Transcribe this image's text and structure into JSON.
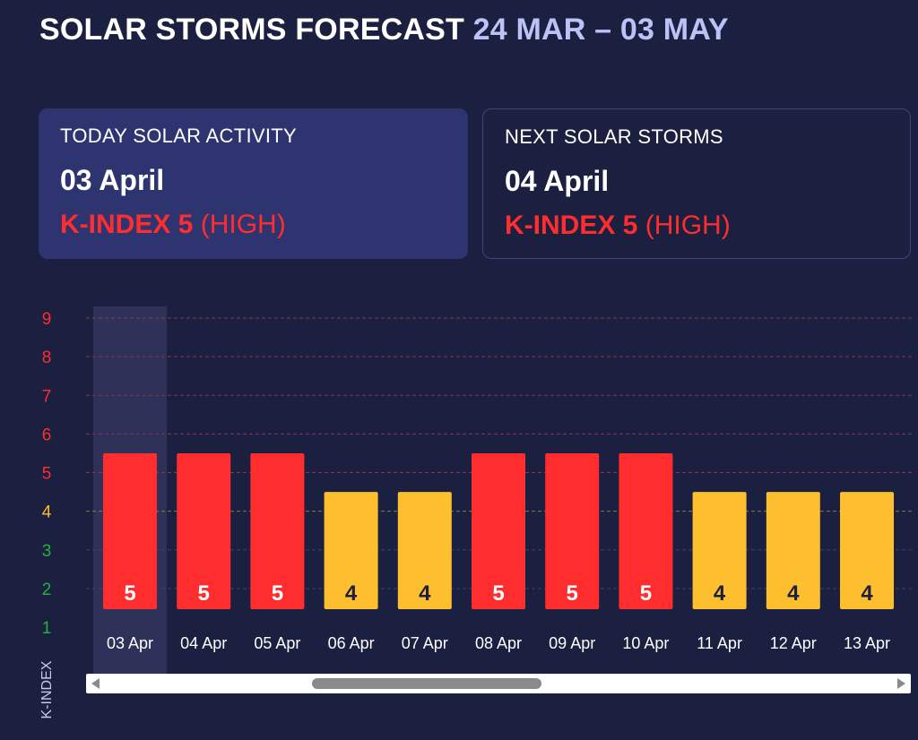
{
  "header": {
    "title": "SOLAR STORMS FORECAST",
    "range": "24 MAR – 03 MAY"
  },
  "today_card": {
    "label": "TODAY SOLAR ACTIVITY",
    "date": "03 April",
    "kindex": "K-INDEX 5",
    "level": "(HIGH)"
  },
  "next_card": {
    "label": "NEXT SOLAR STORMS",
    "date": "04 April",
    "kindex": "K-INDEX 5",
    "level": "(HIGH)"
  },
  "colors": {
    "background": "#1b1f40",
    "high": "#ff2d2d",
    "medium": "#fdbf2d",
    "low": "#22b43a",
    "highlight": "#2e3258"
  },
  "chart_data": {
    "type": "bar",
    "categories": [
      "03 Apr",
      "04 Apr",
      "05 Apr",
      "06 Apr",
      "07 Apr",
      "08 Apr",
      "09 Apr",
      "10 Apr",
      "11 Apr",
      "12 Apr",
      "13 Apr"
    ],
    "values": [
      5,
      5,
      5,
      4,
      4,
      5,
      5,
      5,
      4,
      4,
      4
    ],
    "ylabel": "K-INDEX",
    "ylim": [
      1,
      9
    ],
    "yticks": [
      1,
      2,
      3,
      4,
      5,
      6,
      7,
      8,
      9
    ],
    "highlighted_category": "03 Apr",
    "grid": true
  }
}
